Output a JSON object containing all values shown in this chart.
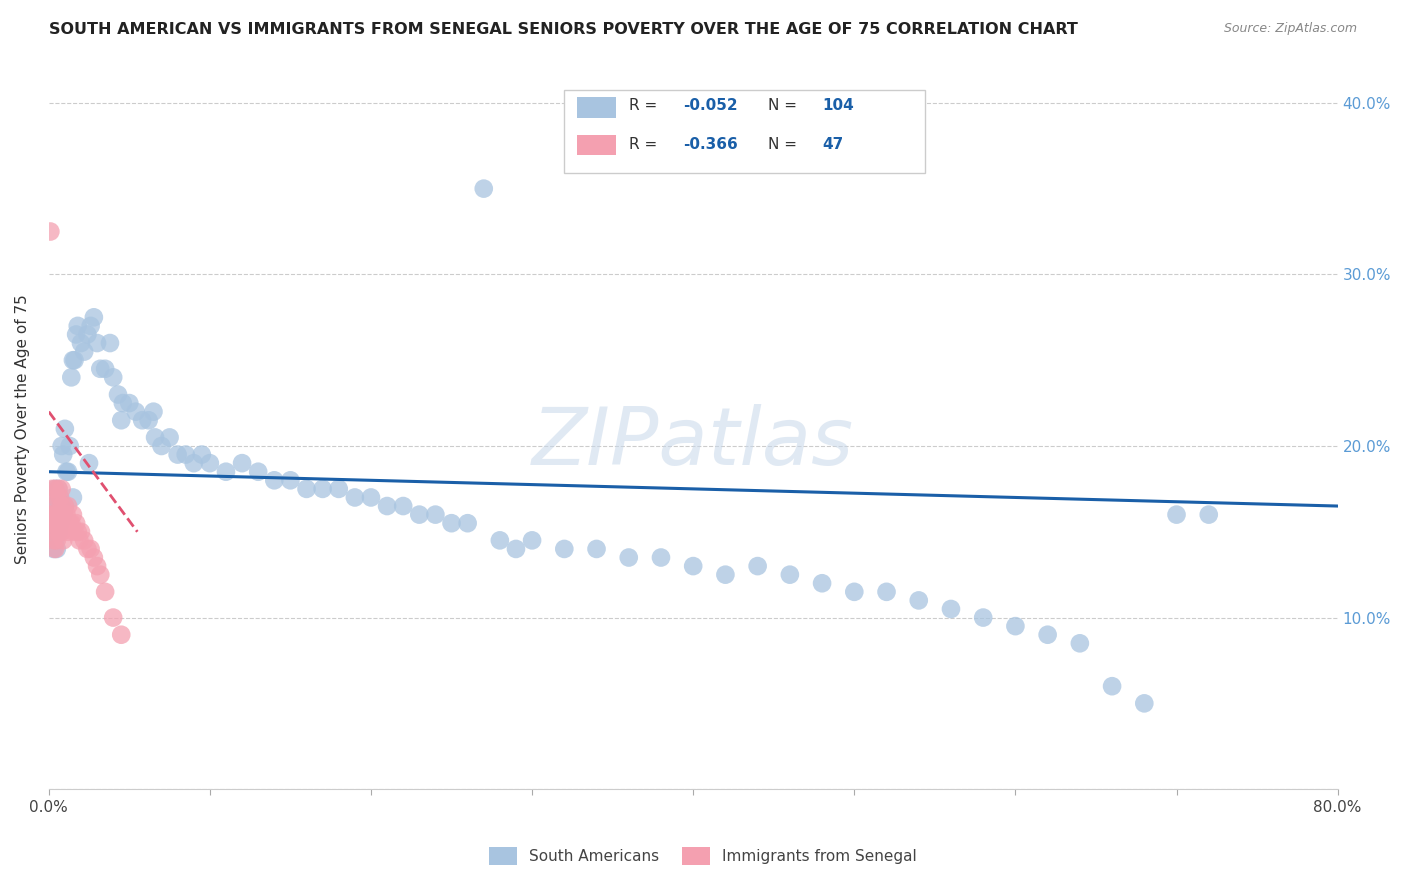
{
  "title": "SOUTH AMERICAN VS IMMIGRANTS FROM SENEGAL SENIORS POVERTY OVER THE AGE OF 75 CORRELATION CHART",
  "source": "Source: ZipAtlas.com",
  "ylabel": "Seniors Poverty Over the Age of 75",
  "watermark": "ZIPatlas",
  "xlim": [
    0.0,
    0.8
  ],
  "ylim": [
    0.0,
    0.42
  ],
  "legend_r_blue": "-0.052",
  "legend_n_blue": "104",
  "legend_r_pink": "-0.366",
  "legend_n_pink": "47",
  "blue_color": "#a8c4e0",
  "pink_color": "#f4a0b0",
  "line_blue_color": "#1a5fa8",
  "line_pink_color": "#e05070",
  "background_color": "#ffffff",
  "grid_color": "#cccccc",
  "sa_x": [
    0.001,
    0.001,
    0.002,
    0.002,
    0.002,
    0.003,
    0.003,
    0.003,
    0.003,
    0.004,
    0.004,
    0.004,
    0.004,
    0.005,
    0.005,
    0.005,
    0.006,
    0.006,
    0.006,
    0.007,
    0.007,
    0.008,
    0.008,
    0.009,
    0.009,
    0.01,
    0.01,
    0.011,
    0.012,
    0.013,
    0.014,
    0.015,
    0.016,
    0.017,
    0.018,
    0.02,
    0.022,
    0.024,
    0.026,
    0.028,
    0.03,
    0.032,
    0.035,
    0.038,
    0.04,
    0.043,
    0.046,
    0.05,
    0.054,
    0.058,
    0.062,
    0.066,
    0.07,
    0.075,
    0.08,
    0.085,
    0.09,
    0.095,
    0.1,
    0.11,
    0.12,
    0.13,
    0.14,
    0.15,
    0.16,
    0.17,
    0.18,
    0.19,
    0.2,
    0.21,
    0.22,
    0.23,
    0.24,
    0.25,
    0.26,
    0.27,
    0.28,
    0.29,
    0.3,
    0.32,
    0.34,
    0.36,
    0.38,
    0.4,
    0.42,
    0.44,
    0.46,
    0.48,
    0.5,
    0.52,
    0.54,
    0.56,
    0.58,
    0.6,
    0.62,
    0.64,
    0.66,
    0.68,
    0.7,
    0.72,
    0.015,
    0.025,
    0.045,
    0.065
  ],
  "sa_y": [
    0.155,
    0.16,
    0.145,
    0.15,
    0.165,
    0.14,
    0.15,
    0.155,
    0.165,
    0.145,
    0.155,
    0.16,
    0.175,
    0.14,
    0.155,
    0.165,
    0.15,
    0.165,
    0.175,
    0.155,
    0.17,
    0.165,
    0.2,
    0.16,
    0.195,
    0.165,
    0.21,
    0.185,
    0.185,
    0.2,
    0.24,
    0.25,
    0.25,
    0.265,
    0.27,
    0.26,
    0.255,
    0.265,
    0.27,
    0.275,
    0.26,
    0.245,
    0.245,
    0.26,
    0.24,
    0.23,
    0.225,
    0.225,
    0.22,
    0.215,
    0.215,
    0.205,
    0.2,
    0.205,
    0.195,
    0.195,
    0.19,
    0.195,
    0.19,
    0.185,
    0.19,
    0.185,
    0.18,
    0.18,
    0.175,
    0.175,
    0.175,
    0.17,
    0.17,
    0.165,
    0.165,
    0.16,
    0.16,
    0.155,
    0.155,
    0.35,
    0.145,
    0.14,
    0.145,
    0.14,
    0.14,
    0.135,
    0.135,
    0.13,
    0.125,
    0.13,
    0.125,
    0.12,
    0.115,
    0.115,
    0.11,
    0.105,
    0.1,
    0.095,
    0.09,
    0.085,
    0.06,
    0.05,
    0.16,
    0.16,
    0.17,
    0.19,
    0.215,
    0.22
  ],
  "sen_x": [
    0.001,
    0.001,
    0.002,
    0.002,
    0.002,
    0.003,
    0.003,
    0.003,
    0.004,
    0.004,
    0.004,
    0.005,
    0.005,
    0.005,
    0.006,
    0.006,
    0.006,
    0.007,
    0.007,
    0.007,
    0.008,
    0.008,
    0.008,
    0.009,
    0.009,
    0.01,
    0.01,
    0.011,
    0.012,
    0.012,
    0.013,
    0.014,
    0.015,
    0.016,
    0.017,
    0.018,
    0.019,
    0.02,
    0.022,
    0.024,
    0.026,
    0.028,
    0.03,
    0.032,
    0.035,
    0.04,
    0.045
  ],
  "sen_y": [
    0.325,
    0.16,
    0.155,
    0.16,
    0.175,
    0.145,
    0.155,
    0.165,
    0.14,
    0.15,
    0.175,
    0.145,
    0.16,
    0.17,
    0.15,
    0.155,
    0.175,
    0.15,
    0.155,
    0.17,
    0.15,
    0.165,
    0.175,
    0.145,
    0.16,
    0.155,
    0.165,
    0.16,
    0.15,
    0.165,
    0.155,
    0.155,
    0.16,
    0.15,
    0.155,
    0.15,
    0.145,
    0.15,
    0.145,
    0.14,
    0.14,
    0.135,
    0.13,
    0.125,
    0.115,
    0.1,
    0.09
  ],
  "sa_line_x": [
    0.0,
    0.8
  ],
  "sa_line_y": [
    0.185,
    0.165
  ],
  "sen_line_x": [
    0.0,
    0.055
  ],
  "sen_line_y": [
    0.22,
    0.15
  ]
}
